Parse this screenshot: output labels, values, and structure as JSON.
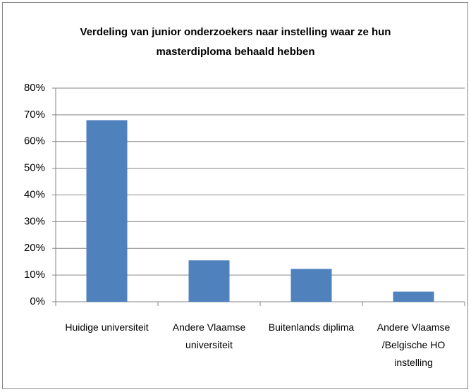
{
  "chart_data": {
    "type": "bar",
    "title": "Verdeling van junior onderzoekers naar instelling waar ze hun masterdiploma behaald hebben",
    "categories": [
      "Huidige universiteit",
      "Andere Vlaamse universiteit",
      "Buitenlands diplima",
      "Andere Vlaamse /Belgische HO instelling"
    ],
    "values": [
      68,
      15.5,
      12.3,
      3.8
    ],
    "color": "#4f81bd",
    "ylim": [
      0,
      80
    ],
    "yticks": [
      {
        "value": 0,
        "label": "0%"
      },
      {
        "value": 10,
        "label": "10%"
      },
      {
        "value": 20,
        "label": "20%"
      },
      {
        "value": 30,
        "label": "30%"
      },
      {
        "value": 40,
        "label": "40%"
      },
      {
        "value": 50,
        "label": "50%"
      },
      {
        "value": 60,
        "label": "60%"
      },
      {
        "value": 70,
        "label": "70%"
      },
      {
        "value": 80,
        "label": "80%"
      }
    ],
    "grid": true
  }
}
